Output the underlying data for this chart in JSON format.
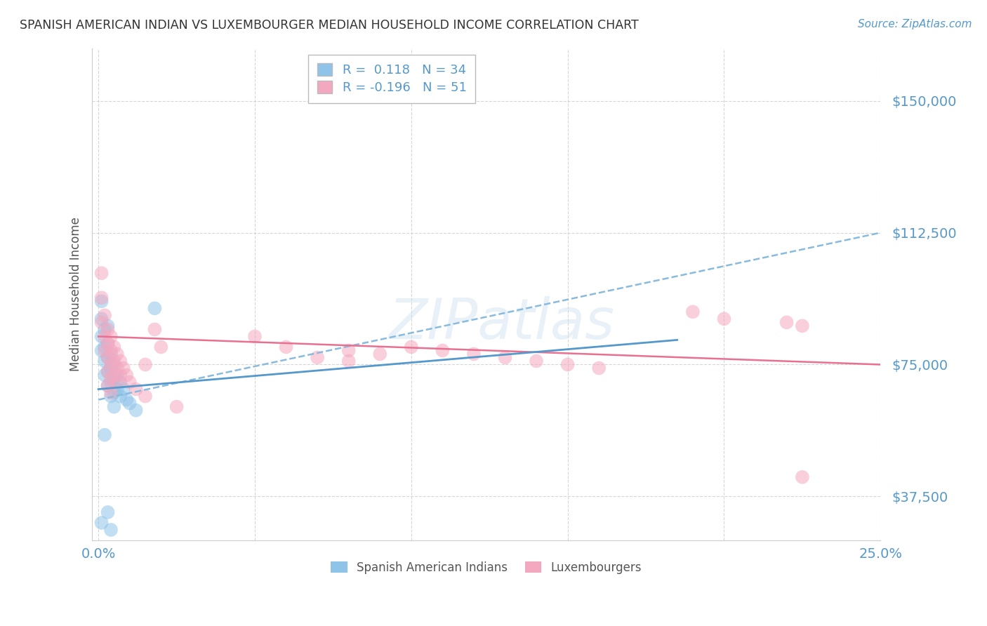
{
  "title": "SPANISH AMERICAN INDIAN VS LUXEMBOURGER MEDIAN HOUSEHOLD INCOME CORRELATION CHART",
  "source": "Source: ZipAtlas.com",
  "ylabel": "Median Household Income",
  "xlim": [
    -0.002,
    0.25
  ],
  "ylim": [
    25000,
    165000
  ],
  "yticks": [
    37500,
    75000,
    112500,
    150000
  ],
  "ytick_labels": [
    "$37,500",
    "$75,000",
    "$112,500",
    "$150,000"
  ],
  "xticks": [
    0.0,
    0.05,
    0.1,
    0.15,
    0.2,
    0.25
  ],
  "xtick_labels": [
    "0.0%",
    "",
    "",
    "",
    "",
    "25.0%"
  ],
  "color_blue": "#8ec4e8",
  "color_pink": "#f4a8bf",
  "color_blue_line": "#5599cc",
  "color_pink_line": "#e87090",
  "color_blue_dashed_line": "#88bbdd",
  "color_title": "#444444",
  "color_source": "#5599cc",
  "color_tick_labels": "#5599cc",
  "watermark_text": "ZIPatlas",
  "blue_R": 0.118,
  "blue_N": 34,
  "pink_R": -0.196,
  "pink_N": 51,
  "blue_trend": [
    0.0,
    65000,
    0.25,
    112500
  ],
  "pink_trend": [
    0.0,
    83000,
    0.25,
    75000
  ],
  "blue_points": [
    [
      0.001,
      93000
    ],
    [
      0.001,
      88000
    ],
    [
      0.001,
      83000
    ],
    [
      0.001,
      79000
    ],
    [
      0.002,
      85000
    ],
    [
      0.002,
      80000
    ],
    [
      0.002,
      76000
    ],
    [
      0.002,
      72000
    ],
    [
      0.003,
      86000
    ],
    [
      0.003,
      81000
    ],
    [
      0.003,
      77000
    ],
    [
      0.003,
      73000
    ],
    [
      0.003,
      69000
    ],
    [
      0.004,
      78000
    ],
    [
      0.004,
      74000
    ],
    [
      0.004,
      70000
    ],
    [
      0.004,
      66000
    ],
    [
      0.005,
      75000
    ],
    [
      0.005,
      71000
    ],
    [
      0.005,
      67000
    ],
    [
      0.005,
      63000
    ],
    [
      0.006,
      72000
    ],
    [
      0.006,
      68000
    ],
    [
      0.007,
      70000
    ],
    [
      0.007,
      66000
    ],
    [
      0.008,
      68000
    ],
    [
      0.009,
      65000
    ],
    [
      0.01,
      64000
    ],
    [
      0.012,
      62000
    ],
    [
      0.018,
      91000
    ],
    [
      0.002,
      55000
    ],
    [
      0.003,
      33000
    ],
    [
      0.004,
      28000
    ],
    [
      0.001,
      30000
    ]
  ],
  "pink_points": [
    [
      0.001,
      101000
    ],
    [
      0.001,
      94000
    ],
    [
      0.001,
      87000
    ],
    [
      0.002,
      89000
    ],
    [
      0.002,
      83000
    ],
    [
      0.002,
      79000
    ],
    [
      0.003,
      85000
    ],
    [
      0.003,
      81000
    ],
    [
      0.003,
      77000
    ],
    [
      0.003,
      73000
    ],
    [
      0.003,
      69000
    ],
    [
      0.004,
      83000
    ],
    [
      0.004,
      79000
    ],
    [
      0.004,
      75000
    ],
    [
      0.004,
      71000
    ],
    [
      0.004,
      67000
    ],
    [
      0.005,
      80000
    ],
    [
      0.005,
      76000
    ],
    [
      0.005,
      72000
    ],
    [
      0.006,
      78000
    ],
    [
      0.006,
      74000
    ],
    [
      0.006,
      70000
    ],
    [
      0.007,
      76000
    ],
    [
      0.007,
      72000
    ],
    [
      0.008,
      74000
    ],
    [
      0.009,
      72000
    ],
    [
      0.01,
      70000
    ],
    [
      0.012,
      68000
    ],
    [
      0.015,
      66000
    ],
    [
      0.018,
      85000
    ],
    [
      0.02,
      80000
    ],
    [
      0.05,
      83000
    ],
    [
      0.06,
      80000
    ],
    [
      0.07,
      77000
    ],
    [
      0.08,
      79000
    ],
    [
      0.08,
      76000
    ],
    [
      0.09,
      78000
    ],
    [
      0.1,
      80000
    ],
    [
      0.11,
      79000
    ],
    [
      0.12,
      78000
    ],
    [
      0.13,
      77000
    ],
    [
      0.14,
      76000
    ],
    [
      0.15,
      75000
    ],
    [
      0.16,
      74000
    ],
    [
      0.19,
      90000
    ],
    [
      0.2,
      88000
    ],
    [
      0.22,
      87000
    ],
    [
      0.225,
      86000
    ],
    [
      0.225,
      43000
    ],
    [
      0.015,
      75000
    ],
    [
      0.025,
      63000
    ]
  ]
}
